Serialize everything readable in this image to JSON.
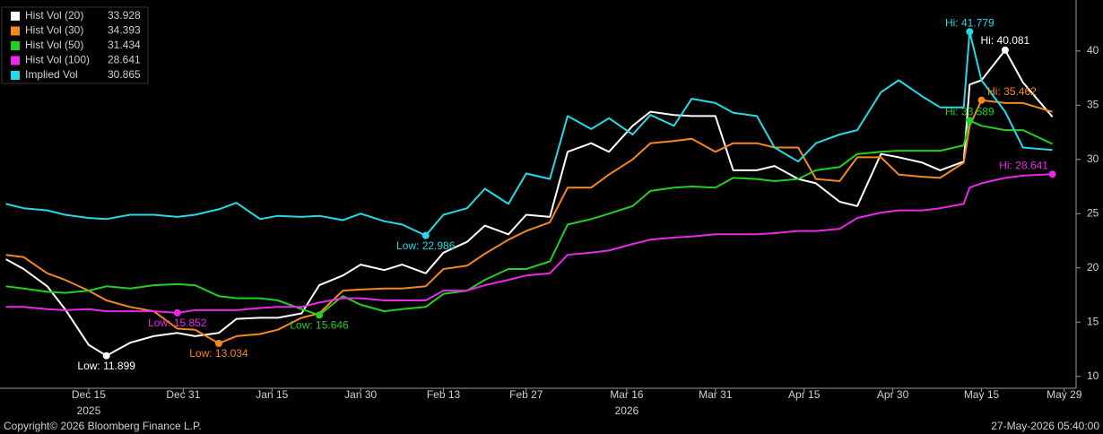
{
  "chart_data": {
    "type": "line",
    "x": [
      "2025-12-01",
      "2025-12-04",
      "2025-12-08",
      "2025-12-11",
      "2025-12-15",
      "2025-12-18",
      "2025-12-22",
      "2025-12-26",
      "2025-12-30",
      "2026-01-02",
      "2026-01-06",
      "2026-01-09",
      "2026-01-13",
      "2026-01-16",
      "2026-01-20",
      "2026-01-23",
      "2026-01-27",
      "2026-01-30",
      "2026-02-03",
      "2026-02-06",
      "2026-02-10",
      "2026-02-13",
      "2026-02-17",
      "2026-02-20",
      "2026-02-24",
      "2026-02-27",
      "2026-03-03",
      "2026-03-06",
      "2026-03-10",
      "2026-03-13",
      "2026-03-17",
      "2026-03-20",
      "2026-03-24",
      "2026-03-27",
      "2026-03-31",
      "2026-04-03",
      "2026-04-07",
      "2026-04-10",
      "2026-04-14",
      "2026-04-17",
      "2026-04-21",
      "2026-04-24",
      "2026-04-28",
      "2026-05-01",
      "2026-05-05",
      "2026-05-08",
      "2026-05-12",
      "2026-05-13",
      "2026-05-15",
      "2026-05-19",
      "2026-05-22",
      "2026-05-27"
    ],
    "xlim": [
      "2025-11-30",
      "2026-05-31"
    ],
    "xticks": [
      {
        "value": "2025-12-15",
        "label": "Dec 15"
      },
      {
        "value": "2025-12-31",
        "label": "Dec 31"
      },
      {
        "value": "2026-01-15",
        "label": "Jan 15"
      },
      {
        "value": "2026-01-30",
        "label": "Jan 30"
      },
      {
        "value": "2026-02-13",
        "label": "Feb 13"
      },
      {
        "value": "2026-02-27",
        "label": "Feb 27"
      },
      {
        "value": "2026-03-16",
        "label": "Mar 16"
      },
      {
        "value": "2026-03-31",
        "label": "Mar 31"
      },
      {
        "value": "2026-04-15",
        "label": "Apr 15"
      },
      {
        "value": "2026-04-30",
        "label": "Apr 30"
      },
      {
        "value": "2026-05-15",
        "label": "May 15"
      },
      {
        "value": "2026-05-29",
        "label": "May 29"
      }
    ],
    "year_labels": [
      {
        "value": "2025-12-15",
        "label": "2025"
      },
      {
        "value": "2026-03-16",
        "label": "2026"
      }
    ],
    "ylim": [
      8.9,
      44.7
    ],
    "yticks": [
      10,
      15,
      20,
      25,
      30,
      35,
      40
    ],
    "series": [
      {
        "name": "Hist Vol (20)",
        "last": 33.928,
        "color": "#ffffff",
        "values": [
          20.8,
          19.9,
          18.3,
          16.2,
          12.9,
          11.899,
          13.1,
          13.7,
          14.0,
          13.7,
          14.0,
          15.3,
          15.4,
          15.4,
          15.8,
          18.4,
          19.3,
          20.3,
          19.8,
          20.3,
          19.5,
          21.4,
          22.4,
          23.9,
          23.1,
          24.9,
          24.7,
          30.7,
          31.5,
          30.7,
          33.1,
          34.4,
          34.1,
          34.0,
          34.0,
          29.0,
          29.0,
          29.4,
          28.2,
          27.8,
          26.1,
          25.7,
          30.5,
          30.2,
          29.7,
          29.0,
          29.8,
          36.9,
          37.3,
          40.081,
          37.1,
          33.928
        ],
        "markers": [
          {
            "x": "2025-12-18",
            "value": 11.899,
            "label": "Low: 11.899"
          },
          {
            "x": "2026-05-19",
            "value": 40.081,
            "label": "Hi: 40.081"
          }
        ]
      },
      {
        "name": "Hist Vol (30)",
        "last": 34.393,
        "color": "#f5871f",
        "values": [
          21.2,
          21.0,
          19.5,
          18.9,
          17.9,
          17.0,
          16.4,
          16.0,
          14.4,
          14.3,
          13.034,
          13.7,
          13.9,
          14.3,
          15.4,
          15.8,
          17.9,
          18.0,
          18.1,
          18.1,
          18.3,
          19.9,
          20.2,
          21.3,
          22.6,
          23.4,
          24.2,
          27.4,
          27.4,
          28.6,
          30.0,
          31.5,
          31.7,
          31.9,
          30.7,
          31.5,
          31.5,
          31.1,
          31.1,
          28.2,
          28.0,
          30.2,
          30.2,
          28.6,
          28.4,
          28.3,
          29.7,
          33.1,
          35.462,
          35.2,
          35.2,
          34.393
        ],
        "markers": [
          {
            "x": "2026-01-06",
            "value": 13.034,
            "label": "Low: 13.034"
          },
          {
            "x": "2026-05-15",
            "value": 35.462,
            "label": "Hi: 35.462"
          }
        ]
      },
      {
        "name": "Hist Vol (50)",
        "last": 31.434,
        "color": "#22d022",
        "values": [
          18.3,
          18.1,
          17.8,
          17.7,
          17.9,
          18.3,
          18.1,
          18.4,
          18.5,
          18.4,
          17.4,
          17.2,
          17.2,
          17.0,
          16.2,
          15.646,
          17.4,
          16.6,
          16.0,
          16.2,
          16.4,
          17.6,
          17.9,
          18.9,
          19.9,
          19.9,
          20.6,
          24.0,
          24.5,
          25.0,
          25.7,
          27.1,
          27.4,
          27.5,
          27.4,
          28.3,
          28.2,
          28.0,
          28.2,
          29.0,
          29.3,
          30.5,
          30.7,
          30.8,
          30.8,
          30.8,
          31.3,
          33.589,
          33.1,
          32.7,
          32.7,
          31.434
        ],
        "markers": [
          {
            "x": "2026-01-23",
            "value": 15.646,
            "label": "Low: 15.646"
          },
          {
            "x": "2026-05-13",
            "value": 33.589,
            "label": "Hi: 33.589"
          }
        ]
      },
      {
        "name": "Hist Vol (100)",
        "last": 28.641,
        "color": "#e82ae8",
        "values": [
          16.4,
          16.4,
          16.2,
          16.1,
          16.2,
          16.0,
          16.0,
          16.0,
          15.852,
          16.1,
          16.1,
          16.1,
          16.3,
          16.4,
          16.4,
          16.8,
          17.2,
          17.2,
          17.0,
          17.0,
          17.0,
          17.9,
          17.9,
          18.4,
          18.9,
          19.3,
          19.5,
          21.2,
          21.4,
          21.6,
          22.2,
          22.6,
          22.8,
          22.9,
          23.1,
          23.1,
          23.1,
          23.2,
          23.4,
          23.4,
          23.6,
          24.6,
          25.1,
          25.3,
          25.3,
          25.5,
          25.9,
          27.4,
          27.8,
          28.3,
          28.5,
          28.641
        ],
        "markers": [
          {
            "x": "2025-12-30",
            "value": 15.852,
            "label": "Low: 15.852"
          },
          {
            "x": "2026-05-27",
            "value": 28.641,
            "label": "Hi: 28.641"
          }
        ]
      },
      {
        "name": "Implied Vol",
        "last": 30.865,
        "color": "#26d9e6",
        "values": [
          25.9,
          25.5,
          25.3,
          24.9,
          24.6,
          24.5,
          24.9,
          24.9,
          24.7,
          24.9,
          25.4,
          26.0,
          24.5,
          24.8,
          24.7,
          24.8,
          24.4,
          25.0,
          24.3,
          24.0,
          22.986,
          24.9,
          25.5,
          27.3,
          25.9,
          28.7,
          28.2,
          34.0,
          32.8,
          33.8,
          32.3,
          34.1,
          33.1,
          35.6,
          35.2,
          34.3,
          34.0,
          31.1,
          29.8,
          31.5,
          32.3,
          32.7,
          36.2,
          37.3,
          35.8,
          34.8,
          34.8,
          41.779,
          37.3,
          34.4,
          31.1,
          30.865
        ],
        "markers": [
          {
            "x": "2026-02-10",
            "value": 22.986,
            "label": "Low: 22.986"
          },
          {
            "x": "2026-05-13",
            "value": 41.779,
            "label": "Hi: 41.779"
          }
        ]
      }
    ],
    "source": "Copyright© 2026 Bloomberg Finance L.P.",
    "timestamp": "27-May-2026 05:40:00"
  }
}
